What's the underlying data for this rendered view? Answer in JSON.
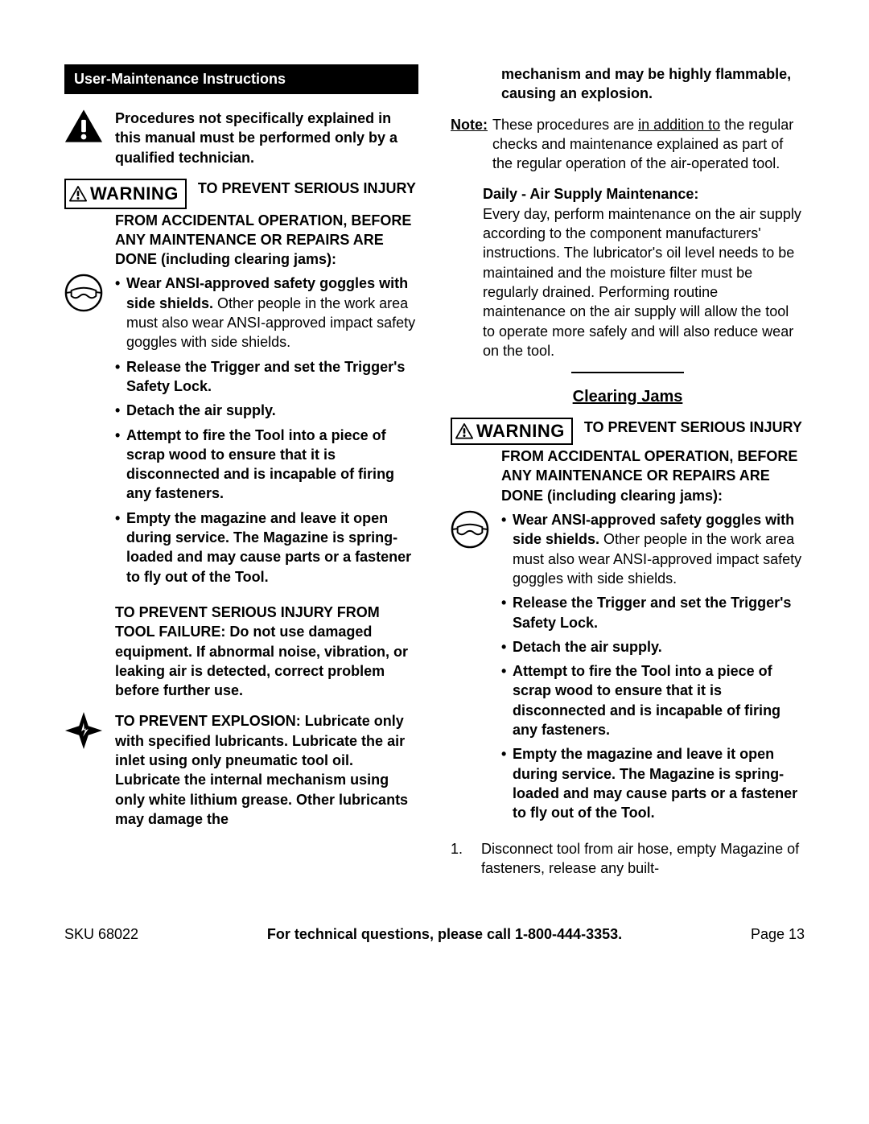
{
  "header": {
    "title": "User-Maintenance Instructions"
  },
  "left": {
    "qualified": "Procedures not specifically explained in this manual must be performed only by a qualified technician.",
    "warning_label": "WARNING",
    "warning_intro": "TO PREVENT SERIOUS INJURY FROM ACCIDENTAL OPERATION, BEFORE ANY MAINTENANCE OR REPAIRS ARE DONE (including clearing jams):",
    "bullets": [
      {
        "bold": "Wear ANSI-approved safety goggles with side shields.",
        "rest": "  Other people in the work area must also wear ANSI-approved impact safety goggles with side shields."
      },
      {
        "bold": "Release the Trigger and set the Trigger's Safety Lock.",
        "rest": ""
      },
      {
        "bold": "Detach the air supply.",
        "rest": ""
      },
      {
        "bold": "Attempt to fire the Tool into a piece of scrap wood to ensure that it is disconnected and is incapable of firing any fasteners.",
        "rest": ""
      },
      {
        "bold": "Empty the magazine and leave it open during service.  The Magazine is spring-loaded and may cause parts or a fastener to fly out of the Tool.",
        "rest": ""
      }
    ],
    "failure": "TO PREVENT SERIOUS INJURY FROM TOOL FAILURE: Do not use damaged equipment.  If abnormal noise, vibration, or leaking air is detected, correct problem before further use.",
    "explosion": "TO PREVENT EXPLOSION:  Lubricate only with specified lubricants.  Lubricate the air inlet using only pneumatic tool oil.  Lubricate the internal mechanism using only white lithium grease.  Other lubricants may damage the"
  },
  "right": {
    "continuation": "mechanism and may be highly flammable, causing an explosion.",
    "note_label": "Note:",
    "note_text_pre": "These procedures are ",
    "note_text_u": "in addition to",
    "note_text_post": " the regular checks and maintenance explained as part of the regular operation of the air-operated tool.",
    "daily_title": "Daily - Air Supply Maintenance:",
    "daily_text": "Every day, perform maintenance on the air supply according to the component manufacturers' instructions.   The lubricator's oil level needs to be maintained and the moisture filter must be regularly drained.   Performing routine maintenance on the air supply will allow the tool to operate more safely and will also reduce wear on the tool.",
    "clearing_heading": "Clearing Jams",
    "warning_label": "WARNING",
    "warning_intro": "TO PREVENT SERIOUS INJURY FROM ACCIDENTAL OPERATION, BEFORE ANY MAINTENANCE OR REPAIRS ARE DONE (including clearing jams):",
    "bullets": [
      {
        "bold": "Wear ANSI-approved safety goggles with side shields.",
        "rest": "  Other people in the work area must also wear ANSI-approved impact safety goggles with side shields."
      },
      {
        "bold": "Release the Trigger and set the Trigger's Safety Lock.",
        "rest": ""
      },
      {
        "bold": "Detach the air supply.",
        "rest": ""
      },
      {
        "bold": "Attempt to fire the Tool into a piece of scrap wood to ensure that it is disconnected and is incapable of firing any fasteners.",
        "rest": ""
      },
      {
        "bold": "Empty the magazine and leave it open during service.  The Magazine is spring-loaded and may cause parts or a fastener to fly out of the Tool.",
        "rest": ""
      }
    ],
    "step1_num": "1.",
    "step1": "Disconnect tool from air hose, empty Magazine of fasteners, release any built-"
  },
  "footer": {
    "sku": "SKU 68022",
    "mid": "For technical questions, please call 1-800-444-3353.",
    "page": "Page 13"
  }
}
